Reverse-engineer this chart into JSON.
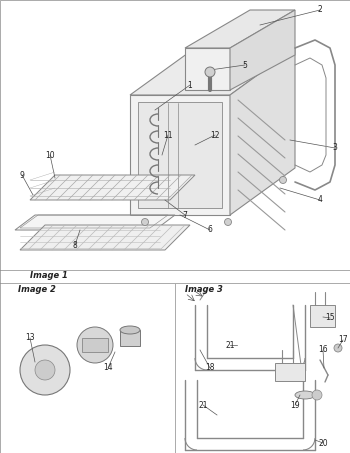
{
  "bg_color": "#ffffff",
  "line_color": "#888888",
  "text_color": "#222222",
  "border_color": "#aaaaaa",
  "image1_label": "Image 1",
  "image2_label": "Image 2",
  "image3_label": "Image 3",
  "fig_width": 3.5,
  "fig_height": 4.53,
  "dpi": 100
}
